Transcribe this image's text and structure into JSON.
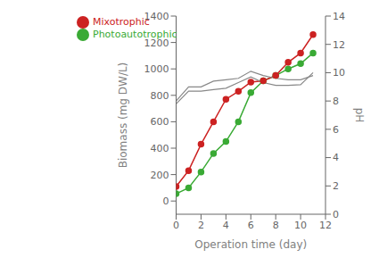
{
  "chart_data": {
    "type": "line",
    "x_label": "Operation time (day)",
    "y_label": "Biomass (mg DW/L)",
    "y2_label": "pH",
    "x": [
      0,
      1,
      2,
      3,
      4,
      5,
      6,
      7,
      8,
      9,
      10,
      11
    ],
    "xlim": [
      0,
      12
    ],
    "xticks": [
      0,
      2,
      4,
      6,
      8,
      10,
      12
    ],
    "ylim": [
      -100,
      1400
    ],
    "yticks": [
      0,
      200,
      400,
      600,
      800,
      1000,
      1200,
      1400
    ],
    "y2lim": [
      0,
      14
    ],
    "y2ticks": [
      0,
      2,
      4,
      6,
      8,
      10,
      12,
      14
    ],
    "grid": false,
    "legend": "upper left",
    "series": [
      {
        "name": "Photoautotrophic",
        "color": "#3aaa35",
        "marker": "o",
        "values": [
          55,
          100,
          220,
          360,
          450,
          600,
          820,
          910,
          950,
          1000,
          1040,
          1120
        ]
      },
      {
        "name": "Mixotrophic",
        "color": "#cc2222",
        "marker": "o",
        "values": [
          110,
          230,
          430,
          600,
          770,
          830,
          900,
          910,
          950,
          1050,
          1120,
          1260
        ]
      },
      {
        "color": "#888888",
        "marker": "none",
        "axis": "y2",
        "values": [
          7.8,
          8.7,
          8.7,
          8.8,
          8.9,
          9.3,
          9.7,
          9.3,
          9.1,
          9.1,
          9.15,
          10.0
        ]
      },
      {
        "color": "#888888",
        "marker": "none",
        "axis": "y2",
        "values": [
          8.0,
          9.0,
          9.0,
          9.4,
          9.5,
          9.6,
          10.1,
          9.8,
          9.6,
          9.5,
          9.5,
          9.8
        ]
      }
    ]
  }
}
